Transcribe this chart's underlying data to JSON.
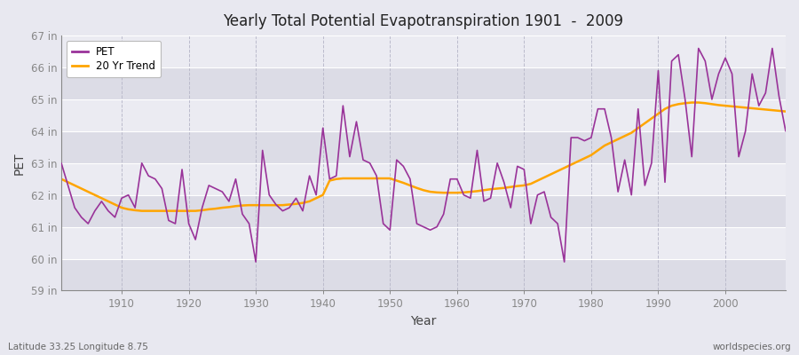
{
  "title": "Yearly Total Potential Evapotranspiration 1901  -  2009",
  "xlabel": "Year",
  "ylabel": "PET",
  "subtitle_left": "Latitude 33.25 Longitude 8.75",
  "subtitle_right": "worldspecies.org",
  "pet_color": "#993399",
  "trend_color": "#FFA500",
  "background_color": "#E8E8F0",
  "band_light": "#EBEBF2",
  "band_dark": "#DCDCE6",
  "ylim": [
    59,
    67
  ],
  "xlim": [
    1901,
    2009
  ],
  "yticks": [
    59,
    60,
    61,
    62,
    63,
    64,
    65,
    66,
    67
  ],
  "xticks": [
    1910,
    1920,
    1930,
    1940,
    1950,
    1960,
    1970,
    1980,
    1990,
    2000
  ],
  "years": [
    1901,
    1902,
    1903,
    1904,
    1905,
    1906,
    1907,
    1908,
    1909,
    1910,
    1911,
    1912,
    1913,
    1914,
    1915,
    1916,
    1917,
    1918,
    1919,
    1920,
    1921,
    1922,
    1923,
    1924,
    1925,
    1926,
    1927,
    1928,
    1929,
    1930,
    1931,
    1932,
    1933,
    1934,
    1935,
    1936,
    1937,
    1938,
    1939,
    1940,
    1941,
    1942,
    1943,
    1944,
    1945,
    1946,
    1947,
    1948,
    1949,
    1950,
    1951,
    1952,
    1953,
    1954,
    1955,
    1956,
    1957,
    1958,
    1959,
    1960,
    1961,
    1962,
    1963,
    1964,
    1965,
    1966,
    1967,
    1968,
    1969,
    1970,
    1971,
    1972,
    1973,
    1974,
    1975,
    1976,
    1977,
    1978,
    1979,
    1980,
    1981,
    1982,
    1983,
    1984,
    1985,
    1986,
    1987,
    1988,
    1989,
    1990,
    1991,
    1992,
    1993,
    1994,
    1995,
    1996,
    1997,
    1998,
    1999,
    2000,
    2001,
    2002,
    2003,
    2004,
    2005,
    2006,
    2007,
    2008,
    2009
  ],
  "pet_values": [
    63.0,
    62.3,
    61.6,
    61.3,
    61.1,
    61.5,
    61.8,
    61.5,
    61.3,
    61.9,
    62.0,
    61.6,
    63.0,
    62.6,
    62.5,
    62.2,
    61.2,
    61.1,
    62.8,
    61.1,
    60.6,
    61.6,
    62.3,
    62.2,
    62.1,
    61.8,
    62.5,
    61.4,
    61.1,
    59.9,
    63.4,
    62.0,
    61.7,
    61.5,
    61.6,
    61.9,
    61.5,
    62.6,
    62.0,
    64.1,
    62.5,
    62.6,
    64.8,
    63.2,
    64.3,
    63.1,
    63.0,
    62.6,
    61.1,
    60.9,
    63.1,
    62.9,
    62.5,
    61.1,
    61.0,
    60.9,
    61.0,
    61.4,
    62.5,
    62.5,
    62.0,
    61.9,
    63.4,
    61.8,
    61.9,
    63.0,
    62.4,
    61.6,
    62.9,
    62.8,
    61.1,
    62.0,
    62.1,
    61.3,
    61.1,
    59.9,
    63.8,
    63.8,
    63.7,
    63.8,
    64.7,
    64.7,
    63.8,
    62.1,
    63.1,
    62.0,
    64.7,
    62.3,
    63.0,
    65.9,
    62.4,
    66.2,
    66.4,
    65.0,
    63.2,
    66.6,
    66.2,
    65.0,
    65.8,
    66.3,
    65.8,
    63.2,
    64.0,
    65.8,
    64.8,
    65.2,
    66.6,
    65.1,
    64.0
  ],
  "trend_years": [
    1901,
    1902,
    1903,
    1904,
    1905,
    1906,
    1907,
    1908,
    1909,
    1910,
    1911,
    1912,
    1913,
    1914,
    1915,
    1916,
    1917,
    1918,
    1919,
    1920,
    1921,
    1922,
    1923,
    1924,
    1925,
    1926,
    1927,
    1928,
    1929,
    1930,
    1931,
    1932,
    1933,
    1934,
    1935,
    1936,
    1937,
    1938,
    1939,
    1940,
    1941,
    1942,
    1943,
    1944,
    1945,
    1946,
    1947,
    1948,
    1949,
    1950,
    1951,
    1952,
    1953,
    1954,
    1955,
    1956,
    1957,
    1958,
    1959,
    1960,
    1961,
    1962,
    1963,
    1964,
    1965,
    1966,
    1967,
    1968,
    1969,
    1970,
    1971,
    1972,
    1973,
    1974,
    1975,
    1976,
    1977,
    1978,
    1979,
    1980,
    1981,
    1982,
    1983,
    1984,
    1985,
    1986,
    1987,
    1988,
    1989,
    1990,
    1991,
    1992,
    1993,
    1994,
    1995,
    1996,
    1997,
    1998,
    1999,
    2000,
    2001,
    2002,
    2003,
    2004,
    2005,
    2006,
    2007,
    2008,
    2009
  ],
  "trend_values": [
    62.5,
    62.4,
    62.3,
    62.2,
    62.1,
    62.0,
    61.9,
    61.8,
    61.7,
    61.6,
    61.55,
    61.52,
    61.5,
    61.5,
    61.5,
    61.5,
    61.5,
    61.5,
    61.5,
    61.5,
    61.5,
    61.52,
    61.55,
    61.57,
    61.6,
    61.62,
    61.65,
    61.67,
    61.68,
    61.68,
    61.68,
    61.68,
    61.68,
    61.68,
    61.7,
    61.72,
    61.75,
    61.8,
    61.9,
    62.0,
    62.45,
    62.5,
    62.52,
    62.52,
    62.52,
    62.52,
    62.52,
    62.52,
    62.52,
    62.52,
    62.45,
    62.38,
    62.3,
    62.22,
    62.15,
    62.1,
    62.08,
    62.07,
    62.07,
    62.07,
    62.08,
    62.1,
    62.12,
    62.15,
    62.18,
    62.2,
    62.22,
    62.25,
    62.28,
    62.3,
    62.35,
    62.45,
    62.55,
    62.65,
    62.75,
    62.85,
    62.95,
    63.05,
    63.15,
    63.25,
    63.4,
    63.55,
    63.65,
    63.75,
    63.85,
    63.95,
    64.1,
    64.25,
    64.4,
    64.55,
    64.7,
    64.8,
    64.85,
    64.88,
    64.9,
    64.9,
    64.88,
    64.85,
    64.82,
    64.8,
    64.78,
    64.76,
    64.74,
    64.72,
    64.7,
    64.68,
    64.66,
    64.64,
    64.62
  ]
}
